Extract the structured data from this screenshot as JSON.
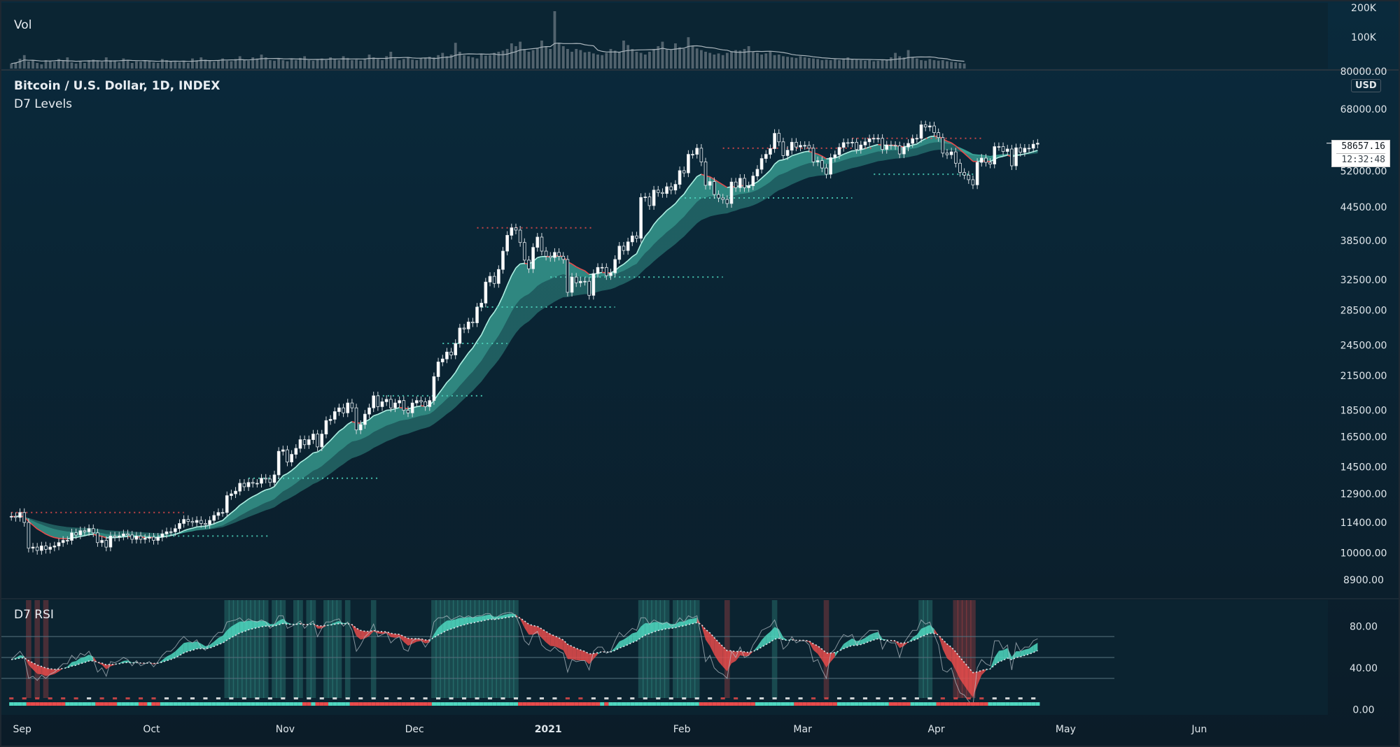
{
  "vol_pane": {
    "title": "Vol",
    "axis_labels": [
      "200K",
      "100K"
    ]
  },
  "main_pane": {
    "title": "Bitcoin / U.S. Dollar, 1D, INDEX",
    "subtitle": "D7 Levels",
    "currency_button": "USD",
    "last_price": "58657.16",
    "countdown": "12:32:48"
  },
  "rsi_pane": {
    "title": "D7 RSI"
  },
  "colors": {
    "background_main": "#0a2536",
    "background_bottom": "#0b1d29",
    "teal": "#4fd8c0",
    "teal_band": "#3aa79a",
    "red": "#e84b4b",
    "axis_text": "#dfe6eb",
    "candle_up": "#ffffff"
  },
  "chart_data": [
    {
      "type": "bar",
      "title": "Vol",
      "yticks": [
        "200K",
        "100K"
      ],
      "ylim": [
        0,
        210000
      ],
      "x_start": "2020-08-29",
      "x_end": "2021-05-10",
      "values": [
        18000,
        22000,
        35000,
        48000,
        25000,
        30000,
        20000,
        15000,
        30000,
        28000,
        24000,
        34000,
        30000,
        40000,
        22000,
        18000,
        26000,
        20000,
        30000,
        32000,
        26000,
        24000,
        40000,
        30000,
        28000,
        22000,
        36000,
        30000,
        20000,
        26000,
        24000,
        30000,
        28000,
        22000,
        20000,
        34000,
        30000,
        26000,
        24000,
        22000,
        28000,
        20000,
        36000,
        30000,
        40000,
        32000,
        28000,
        24000,
        30000,
        36000,
        28000,
        26000,
        34000,
        44000,
        30000,
        28000,
        40000,
        36000,
        50000,
        40000,
        30000,
        28000,
        36000,
        30000,
        26000,
        34000,
        30000,
        38000,
        44000,
        30000,
        28000,
        32000,
        36000,
        30000,
        40000,
        34000,
        30000,
        44000,
        38000,
        30000,
        32000,
        28000,
        36000,
        50000,
        40000,
        34000,
        30000,
        44000,
        60000,
        36000,
        30000,
        34000,
        40000,
        32000,
        30000,
        36000,
        38000,
        42000,
        40000,
        48000,
        56000,
        44000,
        50000,
        92000,
        60000,
        48000,
        44000,
        40000,
        36000,
        52000,
        46000,
        48000,
        56000,
        60000,
        64000,
        70000,
        90000,
        80000,
        96000,
        70000,
        60000,
        66000,
        72000,
        100000,
        80000,
        70000,
        205000,
        90000,
        80000,
        70000,
        60000,
        70000,
        66000,
        58000,
        60000,
        54000,
        50000,
        48000,
        56000,
        70000,
        64000,
        60000,
        100000,
        84000,
        70000,
        60000,
        56000,
        50000,
        60000,
        70000,
        80000,
        96000,
        70000,
        66000,
        90000,
        76000,
        70000,
        112000,
        80000,
        72000,
        66000,
        60000,
        56000,
        50000,
        54000,
        48000,
        56000,
        60000,
        66000,
        64000,
        70000,
        80000,
        60000,
        56000,
        50000,
        54000,
        60000,
        48000,
        50000,
        44000,
        42000,
        40000,
        38000,
        44000,
        40000,
        38000,
        36000,
        34000,
        30000,
        32000,
        30000,
        34000,
        30000,
        36000,
        40000,
        34000,
        32000,
        30000,
        28000,
        30000,
        26000,
        28000,
        30000,
        32000,
        40000,
        56000,
        44000,
        40000,
        66000,
        40000,
        36000,
        30000,
        28000,
        34000,
        30000,
        28000,
        30000,
        26000,
        24000,
        22000,
        20000,
        18000
      ]
    },
    {
      "type": "line",
      "title": "Bitcoin / U.S. Dollar, 1D, INDEX",
      "subtitle": "D7 Levels",
      "y_scale": "log",
      "ylim": [
        8300,
        80000
      ],
      "yticks": [
        80000,
        68000,
        52000,
        44500,
        38500,
        32500,
        28500,
        24500,
        21500,
        18500,
        16500,
        14500,
        12900,
        11400,
        10000,
        8900
      ],
      "yticklabels": [
        "80000.00",
        "68000.00",
        "52000.00",
        "44500.00",
        "38500.00",
        "32500.00",
        "28500.00",
        "24500.00",
        "21500.00",
        "18500.00",
        "16500.00",
        "14500.00",
        "12900.00",
        "11400.00",
        "10000.00",
        "8900.00"
      ],
      "x_start": "2020-08-29",
      "x_end": "2021-05-10",
      "xlim": [
        "2020-08-28",
        "2021-06-30"
      ],
      "xticks": [
        [
          "2020-09-01",
          "Sep"
        ],
        [
          "2020-10-01",
          "Oct"
        ],
        [
          "2020-11-01",
          "Nov"
        ],
        [
          "2020-12-01",
          "Dec"
        ],
        [
          "2021-01-01",
          "2021"
        ],
        [
          "2021-02-01",
          "Feb"
        ],
        [
          "2021-03-01",
          "Mar"
        ],
        [
          "2021-04-01",
          "Apr"
        ],
        [
          "2021-05-01",
          "May"
        ],
        [
          "2021-06-01",
          "Jun"
        ]
      ],
      "last_price": 58657.16,
      "closes": [
        11700,
        11650,
        11900,
        11400,
        10200,
        10250,
        10100,
        10300,
        10150,
        10250,
        10300,
        10450,
        10550,
        10550,
        10900,
        10800,
        11000,
        10950,
        11100,
        10900,
        10450,
        10550,
        10250,
        10750,
        10700,
        10750,
        10850,
        10800,
        10600,
        10750,
        10600,
        10650,
        10700,
        10550,
        10700,
        10850,
        10950,
        10950,
        11100,
        11350,
        11550,
        11450,
        11400,
        11500,
        11350,
        11300,
        11500,
        11750,
        11900,
        11900,
        12800,
        12900,
        13050,
        13500,
        13300,
        13550,
        13500,
        13500,
        13800,
        13750,
        13550,
        14000,
        15500,
        15600,
        14800,
        15300,
        15700,
        16300,
        15950,
        16300,
        16700,
        15800,
        16700,
        17700,
        17800,
        18400,
        18700,
        18300,
        19100,
        18700,
        17000,
        17400,
        18200,
        18700,
        19700,
        18800,
        19200,
        19400,
        18700,
        19100,
        19300,
        18500,
        18300,
        19100,
        19300,
        19200,
        18800,
        19300,
        21400,
        22800,
        23100,
        23800,
        23500,
        24700,
        26400,
        26300,
        27100,
        27000,
        28900,
        29400,
        32200,
        33000,
        32000,
        34000,
        36800,
        39400,
        40700,
        40300,
        38200,
        35400,
        34100,
        37400,
        39100,
        36800,
        36000,
        35800,
        36600,
        36000,
        35500,
        30800,
        32900,
        32100,
        32300,
        32300,
        30400,
        33400,
        34300,
        34300,
        33100,
        33500,
        35500,
        37600,
        36900,
        38300,
        39300,
        38900,
        46400,
        46500,
        44800,
        47900,
        47400,
        47200,
        48600,
        47900,
        49100,
        52100,
        51600,
        55900,
        55900,
        57400,
        54100,
        48900,
        49700,
        47000,
        46300,
        46000,
        45200,
        49600,
        48400,
        50400,
        48400,
        48800,
        50900,
        52400,
        54900,
        55900,
        57300,
        61200,
        59000,
        55600,
        56900,
        58900,
        57700,
        58100,
        58100,
        57400,
        54100,
        54400,
        52700,
        51300,
        55100,
        55800,
        57600,
        58800,
        58700,
        58900,
        57100,
        58200,
        59000,
        59800,
        59900,
        59900,
        57100,
        58200,
        58100,
        58000,
        56000,
        57700,
        58600,
        59800,
        59900,
        63500,
        62900,
        63200,
        61400,
        60100,
        56200,
        55800,
        56500,
        53800,
        51700,
        51100,
        50100,
        49000,
        54000,
        55000,
        54000,
        53600,
        57800,
        57800,
        56600,
        57200,
        53200,
        57500,
        56400,
        57400,
        57400,
        58400,
        58657
      ]
    },
    {
      "type": "line",
      "title": "D7 RSI",
      "ylim": [
        -5,
        105
      ],
      "yticks": [
        80,
        40,
        0
      ],
      "yticklabels": [
        "80.00",
        "40.00",
        "0.00"
      ],
      "x_start": "2020-08-29",
      "x_end": "2021-05-10",
      "values": [
        48,
        52,
        56,
        50,
        30,
        32,
        28,
        33,
        30,
        34,
        36,
        40,
        44,
        44,
        52,
        48,
        54,
        52,
        56,
        48,
        36,
        40,
        32,
        46,
        45,
        47,
        50,
        48,
        42,
        47,
        42,
        44,
        46,
        41,
        46,
        52,
        56,
        56,
        60,
        66,
        70,
        66,
        64,
        67,
        60,
        57,
        64,
        70,
        74,
        74,
        84,
        85,
        86,
        88,
        84,
        87,
        85,
        84,
        86,
        84,
        78,
        82,
        90,
        90,
        78,
        80,
        82,
        85,
        78,
        82,
        85,
        70,
        78,
        84,
        84,
        86,
        87,
        80,
        84,
        76,
        56,
        62,
        70,
        74,
        82,
        70,
        72,
        74,
        64,
        68,
        70,
        58,
        56,
        66,
        68,
        67,
        60,
        66,
        84,
        88,
        88,
        90,
        86,
        88,
        90,
        88,
        90,
        88,
        90,
        90,
        92,
        92,
        86,
        90,
        92,
        93,
        93,
        90,
        80,
        66,
        62,
        72,
        75,
        62,
        58,
        56,
        60,
        56,
        54,
        36,
        48,
        46,
        47,
        47,
        38,
        56,
        60,
        60,
        54,
        56,
        66,
        74,
        70,
        74,
        78,
        76,
        88,
        88,
        82,
        86,
        84,
        82,
        84,
        80,
        82,
        88,
        84,
        90,
        88,
        90,
        70,
        46,
        52,
        40,
        36,
        34,
        30,
        56,
        50,
        60,
        50,
        52,
        62,
        68,
        76,
        78,
        80,
        86,
        74,
        58,
        62,
        70,
        64,
        66,
        66,
        62,
        46,
        48,
        38,
        30,
        54,
        58,
        66,
        72,
        70,
        72,
        62,
        68,
        72,
        76,
        76,
        76,
        58,
        66,
        64,
        64,
        50,
        64,
        70,
        76,
        76,
        86,
        82,
        84,
        72,
        62,
        38,
        36,
        40,
        26,
        16,
        14,
        8,
        4,
        40,
        48,
        44,
        42,
        66,
        66,
        58,
        62,
        38,
        64,
        56,
        60,
        60,
        66,
        68
      ],
      "levels": [
        70,
        50,
        30
      ]
    }
  ]
}
